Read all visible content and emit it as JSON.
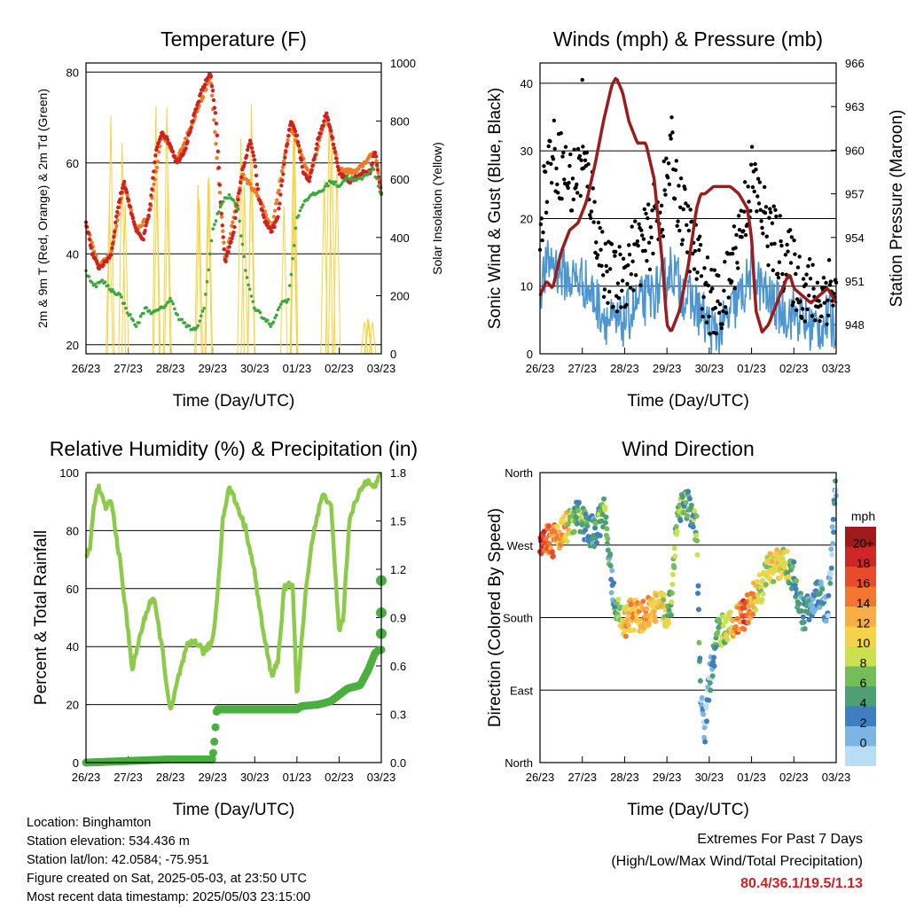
{
  "colors": {
    "temp_2m": "#cc2222",
    "temp_9m": "#f07a22",
    "dewpoint": "#3aa83a",
    "solar": "#f5d33f",
    "gust": "#000000",
    "wind": "#4b95d0",
    "pressure": "#9b1c1c",
    "rh": "#8cca4a",
    "precip": "#4aaf3f",
    "extremes": "#cc2222"
  },
  "info": {
    "location": "Location: Binghamton",
    "elevation": "Station elevation: 534.436 m",
    "latlon": "Station lat/lon: 42.0584; -75.951",
    "created": "Figure created on Sat, 2025-05-03, at 23:50 UTC",
    "latest": "Most recent data timestamp: 2025/05/03 23:15:00"
  },
  "extremes": {
    "title": "Extremes For Past 7 Days",
    "subtitle": "(High/Low/Max Wind/Total Precipitation)",
    "values": "80.4/36.1/19.5/1.13"
  },
  "chart_data": [
    {
      "type": "line",
      "title": "Temperature (F)",
      "xlabel": "Time (Day/UTC)",
      "ylabel": "2m & 9m T (Red, Orange) & 2m Td (Green)",
      "y2label": "Solar Insolation (Yellow)",
      "x_ticks": [
        "26/23",
        "27/23",
        "28/23",
        "29/23",
        "30/23",
        "01/23",
        "02/23",
        "03/23"
      ],
      "xlim": [
        0,
        7
      ],
      "ylim": [
        18,
        82
      ],
      "y_ticks": [
        20,
        40,
        60,
        80
      ],
      "y2lim": [
        0,
        1000
      ],
      "y2_ticks": [
        0,
        200,
        400,
        600,
        800,
        1000
      ],
      "grid": "horizontal",
      "series": [
        {
          "name": "2m T",
          "axis": "left",
          "x": [
            0,
            0.15,
            0.3,
            0.45,
            0.6,
            0.75,
            0.9,
            1.05,
            1.2,
            1.35,
            1.5,
            1.65,
            1.8,
            2.0,
            2.15,
            2.35,
            2.55,
            2.75,
            2.95,
            3.1,
            3.2,
            3.3,
            3.5,
            3.7,
            3.9,
            4.0,
            4.1,
            4.25,
            4.4,
            4.55,
            4.7,
            4.85,
            5.0,
            5.15,
            5.3,
            5.5,
            5.7,
            5.85,
            6.0,
            6.1,
            6.25,
            6.4,
            6.6,
            6.75,
            6.85,
            7.0
          ],
          "values": [
            47,
            40,
            37,
            38,
            40,
            50,
            56,
            50,
            45,
            43,
            49,
            62,
            67,
            64,
            60,
            63,
            70,
            76,
            80,
            68,
            50,
            38,
            45,
            58,
            65,
            60,
            52,
            47,
            45,
            48,
            60,
            69,
            66,
            58,
            56,
            65,
            71,
            65,
            58,
            57,
            56,
            57,
            58,
            58,
            63,
            53
          ]
        },
        {
          "name": "9m T",
          "axis": "left",
          "x": [
            0,
            0.3,
            0.6,
            0.9,
            1.2,
            1.5,
            1.8,
            2.15,
            2.55,
            2.95,
            3.3,
            3.7,
            4.1,
            4.4,
            4.85,
            5.3,
            5.7,
            6.0,
            6.4,
            6.85,
            7.0
          ],
          "values": [
            46.5,
            37.5,
            40,
            55.5,
            45,
            48.5,
            66.5,
            60.5,
            69.5,
            79,
            38.5,
            57.5,
            52.5,
            45.5,
            68.5,
            57,
            70.5,
            58.5,
            58,
            62.5,
            53.5
          ]
        },
        {
          "name": "2m Td",
          "axis": "left",
          "x": [
            0,
            0.2,
            0.4,
            0.6,
            0.8,
            1.0,
            1.2,
            1.4,
            1.6,
            1.8,
            2.0,
            2.2,
            2.4,
            2.6,
            2.8,
            3.0,
            3.2,
            3.4,
            3.6,
            3.8,
            4.0,
            4.2,
            4.4,
            4.6,
            4.8,
            5.0,
            5.2,
            5.4,
            5.6,
            5.8,
            6.0,
            6.2,
            6.4,
            6.6,
            6.8,
            7.0
          ],
          "values": [
            36,
            33,
            34,
            32,
            31,
            27,
            24,
            28,
            27,
            28,
            30,
            26,
            24,
            23,
            28,
            45,
            51,
            53,
            50,
            35,
            28,
            26,
            24,
            29,
            30,
            48,
            52,
            53,
            54,
            56,
            55,
            57,
            56,
            57,
            59,
            53
          ]
        },
        {
          "name": "Solar Insolation",
          "axis": "right",
          "x": [
            0,
            0.45,
            0.6,
            0.7,
            0.8,
            0.9,
            1.2,
            1.5,
            1.6,
            1.7,
            1.8,
            1.9,
            2.2,
            2.5,
            2.6,
            2.7,
            2.8,
            2.9,
            3.2,
            3.5,
            3.6,
            3.7,
            3.8,
            3.9,
            4.2,
            4.5,
            4.6,
            4.7,
            4.8,
            4.9,
            5.2,
            5.5,
            5.6,
            5.7,
            5.8,
            5.9,
            6.2,
            6.5,
            6.6,
            6.7,
            6.8,
            6.9,
            7.0
          ],
          "values": [
            0,
            0,
            200,
            950,
            400,
            100,
            0,
            0,
            300,
            950,
            650,
            200,
            0,
            0,
            600,
            900,
            700,
            200,
            0,
            0,
            300,
            850,
            800,
            150,
            0,
            0,
            500,
            880,
            400,
            100,
            0,
            0,
            450,
            950,
            600,
            350,
            0,
            0,
            80,
            150,
            60,
            920,
            0
          ]
        }
      ]
    },
    {
      "type": "scatter",
      "title": "Winds (mph) & Pressure (mb)",
      "xlabel": "Time (Day/UTC)",
      "ylabel": "Sonic Wind & Gust (Blue, Black)",
      "y2label": "Station Pressure (Maroon)",
      "x_ticks": [
        "26/23",
        "27/23",
        "28/23",
        "29/23",
        "30/23",
        "01/23",
        "02/23",
        "03/23"
      ],
      "xlim": [
        0,
        7
      ],
      "ylim": [
        0,
        43
      ],
      "y_ticks": [
        0,
        10,
        20,
        30,
        40
      ],
      "y2lim": [
        946,
        966
      ],
      "y2_ticks": [
        948,
        951,
        954,
        957,
        960,
        963,
        966
      ],
      "grid": "horizontal",
      "series": [
        {
          "name": "Gust",
          "axis": "left",
          "x": [
            0,
            0.25,
            0.5,
            0.75,
            1.0,
            1.2,
            1.4,
            1.6,
            1.8,
            2.0,
            2.25,
            2.5,
            2.7,
            2.9,
            3.1,
            3.3,
            3.5,
            3.7,
            3.9,
            4.1,
            4.35,
            4.6,
            4.8,
            5.0,
            5.2,
            5.4,
            5.6,
            5.8,
            6.0,
            6.2,
            6.4,
            6.6,
            6.8,
            7.0
          ],
          "values": [
            20,
            30,
            28,
            25,
            28,
            24,
            16,
            12,
            10,
            12,
            15,
            16,
            20,
            22,
            30,
            22,
            18,
            14,
            10,
            7,
            8,
            15,
            20,
            26,
            22,
            18,
            16,
            14,
            12,
            10,
            9,
            8,
            10,
            9
          ]
        },
        {
          "name": "Wind",
          "axis": "left",
          "x": [
            0,
            0.25,
            0.5,
            0.75,
            1.0,
            1.2,
            1.4,
            1.6,
            1.8,
            2.0,
            2.25,
            2.5,
            2.7,
            2.9,
            3.1,
            3.3,
            3.5,
            3.7,
            3.9,
            4.1,
            4.35,
            4.6,
            4.8,
            5.0,
            5.2,
            5.4,
            5.6,
            5.8,
            6.0,
            6.2,
            6.4,
            6.6,
            6.8,
            7.0
          ],
          "values": [
            10,
            14,
            12,
            11,
            11,
            9,
            7,
            5,
            4,
            5,
            7,
            8,
            9,
            10,
            13,
            10,
            8,
            7,
            5,
            3,
            4,
            7,
            9,
            12,
            10,
            8,
            7,
            6,
            6,
            5,
            4,
            4,
            5,
            4
          ]
        },
        {
          "name": "Pressure",
          "axis": "right",
          "x": [
            0,
            0.15,
            0.3,
            0.5,
            0.7,
            0.9,
            1.1,
            1.3,
            1.5,
            1.7,
            1.8,
            1.95,
            2.1,
            2.3,
            2.5,
            2.7,
            2.9,
            3.0,
            3.1,
            3.3,
            3.5,
            3.7,
            3.8,
            3.9,
            4.1,
            4.3,
            4.5,
            4.7,
            4.9,
            5.0,
            5.1,
            5.25,
            5.4,
            5.6,
            5.8,
            5.9,
            6.0,
            6.2,
            6.4,
            6.6,
            6.8,
            7.0
          ],
          "values": [
            950,
            951,
            950.5,
            953,
            954.5,
            955,
            956.5,
            959,
            962,
            964.5,
            965,
            964,
            962,
            960.5,
            960.5,
            958,
            952,
            948,
            947.5,
            949,
            952,
            956,
            957,
            957,
            957.5,
            957.5,
            957.5,
            957,
            956,
            954,
            949,
            947.5,
            948,
            949.5,
            951,
            951.5,
            950.5,
            950,
            949.5,
            950,
            950.5,
            949.5
          ]
        }
      ]
    },
    {
      "type": "line",
      "title": "Relative Humidity (%) & Precipitation (in)",
      "xlabel": "Time (Day/UTC)",
      "ylabel": "Percent & Total Rainfall",
      "x_ticks": [
        "26/23",
        "27/23",
        "28/23",
        "29/23",
        "30/23",
        "01/23",
        "02/23",
        "03/23"
      ],
      "xlim": [
        0,
        7
      ],
      "ylim": [
        0,
        100
      ],
      "y_ticks": [
        0,
        20,
        40,
        60,
        80,
        100
      ],
      "y2lim": [
        0,
        1.8
      ],
      "y2_ticks": [
        "0.0",
        "0.3",
        "0.6",
        "0.9",
        "1.2",
        "1.5",
        "1.8"
      ],
      "grid": "horizontal",
      "series": [
        {
          "name": "RH",
          "axis": "left",
          "x": [
            0,
            0.1,
            0.2,
            0.3,
            0.45,
            0.6,
            0.8,
            1.0,
            1.1,
            1.3,
            1.5,
            1.6,
            1.8,
            2.0,
            2.2,
            2.4,
            2.6,
            2.8,
            3.0,
            3.1,
            3.25,
            3.4,
            3.6,
            3.8,
            4.0,
            4.2,
            4.4,
            4.55,
            4.7,
            4.9,
            5.0,
            5.1,
            5.25,
            5.4,
            5.6,
            5.8,
            6.0,
            6.1,
            6.25,
            6.4,
            6.55,
            6.7,
            6.85,
            7.0
          ],
          "values": [
            70,
            75,
            90,
            95,
            88,
            90,
            70,
            45,
            32,
            45,
            55,
            57,
            40,
            17,
            30,
            40,
            42,
            38,
            42,
            55,
            85,
            95,
            88,
            80,
            65,
            45,
            30,
            35,
            60,
            62,
            22,
            40,
            65,
            80,
            92,
            90,
            45,
            50,
            85,
            90,
            95,
            98,
            95,
            100
          ]
        },
        {
          "name": "Total Precipitation",
          "axis": "right",
          "x": [
            0,
            1.0,
            2.0,
            3.0,
            3.05,
            3.1,
            3.2,
            4.0,
            5.0,
            5.1,
            5.5,
            5.8,
            6.0,
            6.2,
            6.5,
            6.7,
            6.85,
            6.95,
            7.0,
            7.0,
            7.0
          ],
          "values": [
            0,
            0.01,
            0.02,
            0.02,
            0.15,
            0.33,
            0.33,
            0.33,
            0.33,
            0.35,
            0.36,
            0.38,
            0.42,
            0.46,
            0.48,
            0.58,
            0.68,
            0.7,
            0.8,
            0.93,
            1.13
          ]
        }
      ]
    },
    {
      "type": "scatter",
      "title": "Wind Direction",
      "xlabel": "Time (Day/UTC)",
      "ylabel": "Direction (Colored By Speed)",
      "x_ticks": [
        "26/23",
        "27/23",
        "28/23",
        "29/23",
        "30/23",
        "01/23",
        "02/23",
        "03/23"
      ],
      "xlim": [
        0,
        7
      ],
      "ylim": [
        0,
        360
      ],
      "y_ticks": [
        "North",
        "East",
        "South",
        "West",
        "North"
      ],
      "grid": "horizontal",
      "colorbar": {
        "title": "mph",
        "labels": [
          "20+",
          "18",
          "16",
          "14",
          "12",
          "10",
          "8",
          "6",
          "4",
          "2",
          "0"
        ],
        "colors": [
          "#a11a1a",
          "#cf2727",
          "#e84a2c",
          "#f4762f",
          "#f9ad45",
          "#f4d24a",
          "#cbdf4f",
          "#74bd5a",
          "#4e9f73",
          "#3f7fbf",
          "#7bb6e3",
          "#b8ddf5"
        ]
      },
      "series": [
        {
          "name": "Direction",
          "x": [
            0,
            0.1,
            0.2,
            0.3,
            0.45,
            0.6,
            0.7,
            0.8,
            0.9,
            1.0,
            1.1,
            1.3,
            1.5,
            1.6,
            1.7,
            1.8,
            1.9,
            2.0,
            2.1,
            2.2,
            2.4,
            2.6,
            2.8,
            3.0,
            3.1,
            3.2,
            3.3,
            3.5,
            3.6,
            3.7,
            3.8,
            3.9,
            4.0,
            4.1,
            4.2,
            4.4,
            4.6,
            4.8,
            5.0,
            5.2,
            5.4,
            5.6,
            5.8,
            5.9,
            6.0,
            6.2,
            6.4,
            6.6,
            6.8,
            7.0
          ],
          "values": [
            275,
            280,
            280,
            275,
            285,
            290,
            295,
            300,
            310,
            300,
            290,
            285,
            310,
            285,
            220,
            190,
            180,
            175,
            180,
            185,
            180,
            190,
            195,
            185,
            200,
            280,
            320,
            320,
            295,
            290,
            75,
            40,
            100,
            130,
            160,
            170,
            175,
            180,
            200,
            215,
            240,
            245,
            250,
            240,
            230,
            180,
            200,
            210,
            185,
            350
          ],
          "speeds": [
            18,
            18,
            16,
            16,
            14,
            14,
            10,
            6,
            5,
            8,
            6,
            5,
            8,
            6,
            4,
            6,
            10,
            12,
            14,
            14,
            14,
            14,
            12,
            10,
            8,
            8,
            8,
            6,
            6,
            8,
            4,
            2,
            2,
            4,
            6,
            10,
            14,
            18,
            14,
            10,
            10,
            12,
            10,
            8,
            6,
            4,
            4,
            4,
            2,
            4
          ]
        }
      ]
    }
  ]
}
